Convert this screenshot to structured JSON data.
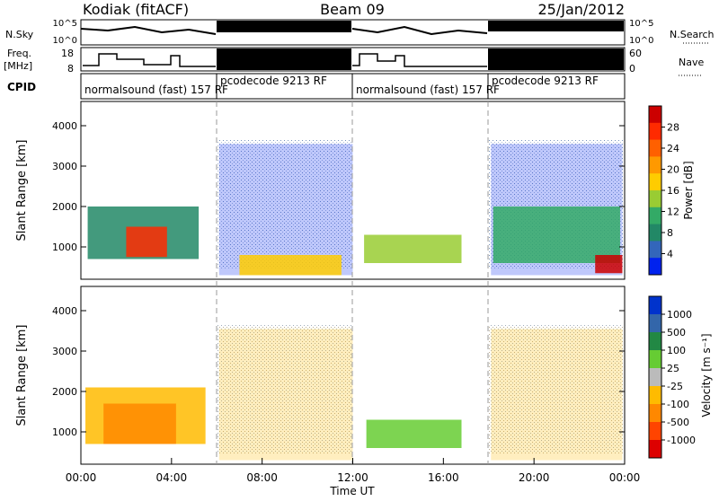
{
  "header": {
    "site": "Kodiak (fitACF)",
    "beam": "Beam 09",
    "date": "25/Jan/2012"
  },
  "status_panels": {
    "nsky_label": "N.Sky",
    "nsky_ticks": [
      "10^5",
      "10^0"
    ],
    "nsearch_label": "N.Search",
    "nsearch_ticks": [
      "10^5",
      "10^0"
    ],
    "freq_label": "Freq.",
    "freq_unit": "[MHz]",
    "freq_ticks": [
      "18",
      "8"
    ],
    "nave_label": "Nave",
    "nave_ticks": [
      "60",
      "0"
    ],
    "cpid_label": "CPID",
    "cpid_segments": [
      {
        "label": "normalsound (fast) 157 RF",
        "start": 0,
        "end": 6
      },
      {
        "label": "pcodecode 9213 RF",
        "start": 6,
        "end": 12
      },
      {
        "label": "normalsound (fast) 157 RF",
        "start": 12,
        "end": 18
      },
      {
        "label": "pcodecode 9213 RF",
        "start": 18,
        "end": 24
      }
    ]
  },
  "power_colorbar": {
    "label": "Power [dB]",
    "ticks": [
      "28",
      "24",
      "20",
      "16",
      "12",
      "8",
      "4"
    ],
    "colors": [
      "#cc0000",
      "#ff2a00",
      "#ff6000",
      "#ff9900",
      "#ffcc00",
      "#99cc33",
      "#33aa66",
      "#228866",
      "#3366bb",
      "#0022ee"
    ]
  },
  "velocity_colorbar": {
    "label": "Velocity [m s⁻¹]",
    "ticks": [
      "1000",
      "500",
      "100",
      "25",
      "-25",
      "-100",
      "-500",
      "-1000"
    ],
    "colors": [
      "#0033cc",
      "#3366aa",
      "#228844",
      "#66cc33",
      "#bbbbbb",
      "#ffbb00",
      "#ff8800",
      "#ff4400",
      "#dd0000"
    ]
  },
  "chart_data": [
    {
      "type": "heatmap",
      "title": "",
      "ylabel": "Slant Range [km]",
      "xlabel": "",
      "xlim": [
        0,
        24
      ],
      "ylim": [
        200,
        4600
      ],
      "yticks": [
        "4000",
        "3000",
        "2000",
        "1000"
      ],
      "colorbar": "Power [dB]",
      "regions": [
        {
          "start": 0.3,
          "end": 5.2,
          "range": [
            700,
            2000
          ],
          "level": 3
        },
        {
          "start": 2.0,
          "end": 3.8,
          "range": [
            750,
            1500
          ],
          "level": 9
        },
        {
          "start": 6.1,
          "end": 12.0,
          "range": [
            300,
            3550
          ],
          "level": 1,
          "sparse": true
        },
        {
          "start": 7.0,
          "end": 11.5,
          "range": [
            300,
            800
          ],
          "level": 6
        },
        {
          "start": 12.5,
          "end": 16.8,
          "range": [
            600,
            1300
          ],
          "level": 5
        },
        {
          "start": 18.1,
          "end": 23.9,
          "range": [
            300,
            3550
          ],
          "level": 1,
          "sparse": true
        },
        {
          "start": 18.2,
          "end": 23.8,
          "range": [
            600,
            2000
          ],
          "level": 4
        },
        {
          "start": 22.7,
          "end": 23.9,
          "range": [
            350,
            800
          ],
          "level": 10
        }
      ]
    },
    {
      "type": "heatmap",
      "title": "",
      "ylabel": "Slant Range [km]",
      "xlabel": "Time UT",
      "xlim": [
        0,
        24
      ],
      "ylim": [
        200,
        4600
      ],
      "yticks": [
        "4000",
        "3000",
        "2000",
        "1000"
      ],
      "xticks": [
        "00:00",
        "04:00",
        "08:00",
        "12:00",
        "16:00",
        "20:00",
        "00:00"
      ],
      "colorbar": "Velocity [m s⁻¹]",
      "regions": [
        {
          "start": 0.2,
          "end": 5.5,
          "range": [
            700,
            2100
          ],
          "level": 4
        },
        {
          "start": 1.0,
          "end": 4.2,
          "range": [
            700,
            1700
          ],
          "level": 3
        },
        {
          "start": 6.1,
          "end": 12.0,
          "range": [
            300,
            3550
          ],
          "level": 4,
          "sparse": true
        },
        {
          "start": 12.6,
          "end": 16.8,
          "range": [
            600,
            1300
          ],
          "level": 6
        },
        {
          "start": 18.1,
          "end": 23.9,
          "range": [
            300,
            3550
          ],
          "level": 4,
          "sparse": true
        }
      ]
    }
  ]
}
